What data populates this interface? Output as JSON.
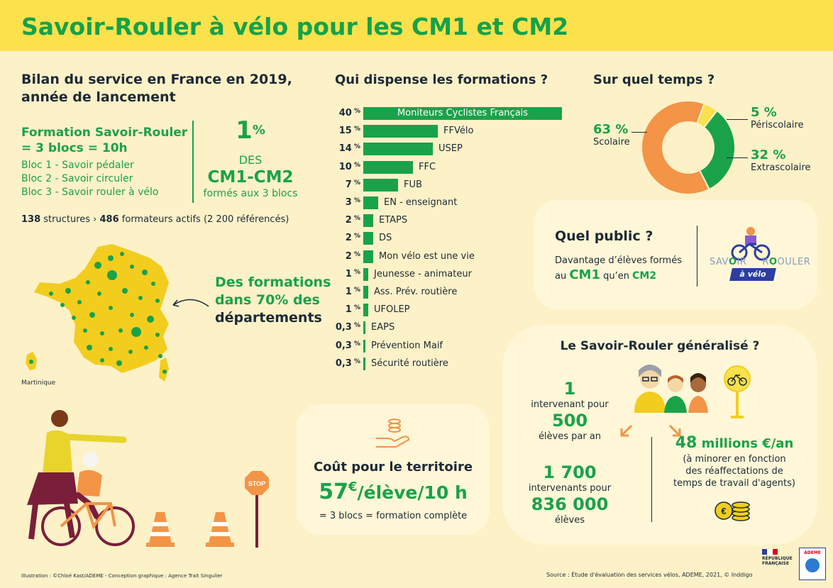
{
  "title": "Savoir-Rouler à vélo pour les CM1 et CM2",
  "bilan": {
    "heading_line1": "Bilan du service en France en 2019,",
    "heading_line2": "année de lancement",
    "formation_line1": "Formation Savoir-Rouler",
    "formation_line2": "= 3 blocs = 10h",
    "blocs": [
      "Bloc 1 - Savoir pédaler",
      "Bloc 2 - Savoir circuler",
      "Bloc 3 - Savoir rouler à vélo"
    ],
    "pct_value": "1",
    "pct_sign": "%",
    "des": "DES",
    "cm": "CM1-CM2",
    "formes": "formés aux 3 blocs",
    "structures_num": "138",
    "structures_text": " structures › ",
    "formateurs_num": "486",
    "formateurs_text": " formateurs actifs (2 200 référencés)"
  },
  "map": {
    "caption_line1": "Des formations",
    "caption_line2": "dans 70% des",
    "caption_line3": "départements",
    "martinique": "Martinique"
  },
  "chart_data": [
    {
      "type": "bar",
      "title": "Qui dispense les formations ?",
      "categories": [
        "Moniteurs Cyclistes Français",
        "FFVélo",
        "USEP",
        "FFC",
        "FUB",
        "EN - enseignant",
        "ETAPS",
        "DS",
        "Mon vélo est une vie",
        "Jeunesse - animateur",
        "Ass. Prév. routière",
        "UFOLEP",
        "EAPS",
        "Prévention Maif",
        "Sécurité routière"
      ],
      "values": [
        40,
        15,
        14,
        10,
        7,
        3,
        2,
        2,
        2,
        1,
        1,
        1,
        0.3,
        0.3,
        0.3
      ],
      "value_labels": [
        "40",
        "15",
        "14",
        "10",
        "7",
        "3",
        "2",
        "2",
        "2",
        "1",
        "1",
        "1",
        "0,3",
        "0,3",
        "0,3"
      ],
      "unit": "%",
      "color": "#1aa24a"
    },
    {
      "type": "pie",
      "title": "Sur quel temps ?",
      "categories": [
        "Scolaire",
        "Périscolaire",
        "Extrascolaire"
      ],
      "values": [
        63,
        5,
        32
      ],
      "colors": [
        "#f39447",
        "#fbe14b",
        "#1aa24a"
      ]
    }
  ],
  "public": {
    "heading": "Quel public ?",
    "line1": "Davantage d’élèves formés",
    "line2_pre": "au ",
    "cm1": "CM1",
    "line2_mid": " qu’en ",
    "cm2": "CM2",
    "logo_sav": "SAV",
    "logo_o": "O",
    "logo_ir": "IR",
    "logo_r": "R",
    "logo_ouler": "OULER",
    "logo_sub": "à vélo"
  },
  "generalise": {
    "heading": "Le Savoir-Rouler généralisé ?",
    "n1": "1",
    "t1": "intervenant pour",
    "n2": "500",
    "t2": "élèves par an",
    "n3": "1 700",
    "t3": "intervenants pour",
    "n4": "836 000",
    "t4": "élèves",
    "m_num": "48",
    "m_text": " millions €/an",
    "m_line1": "(à minorer en fonction",
    "m_line2": "des réaffectations de",
    "m_line3": "temps de travail d'agents)"
  },
  "cout": {
    "heading": "Coût pour le territoire",
    "value": "57",
    "euro": "€",
    "per": "/élève/10 h",
    "sub": "= 3 blocs = formation complète"
  },
  "stop": "STOP",
  "footer": {
    "credits": "Illustration : ©Chloé Kast/ADEME - Conception graphique : Agence Trait Singulier",
    "source": "Source : Étude d'évaluation des services vélos, ADEME, 2021, © Inddigo",
    "rf_line1": "RÉPUBLIQUE",
    "rf_line2": "FRANÇAISE",
    "ademe": "ADEME"
  }
}
